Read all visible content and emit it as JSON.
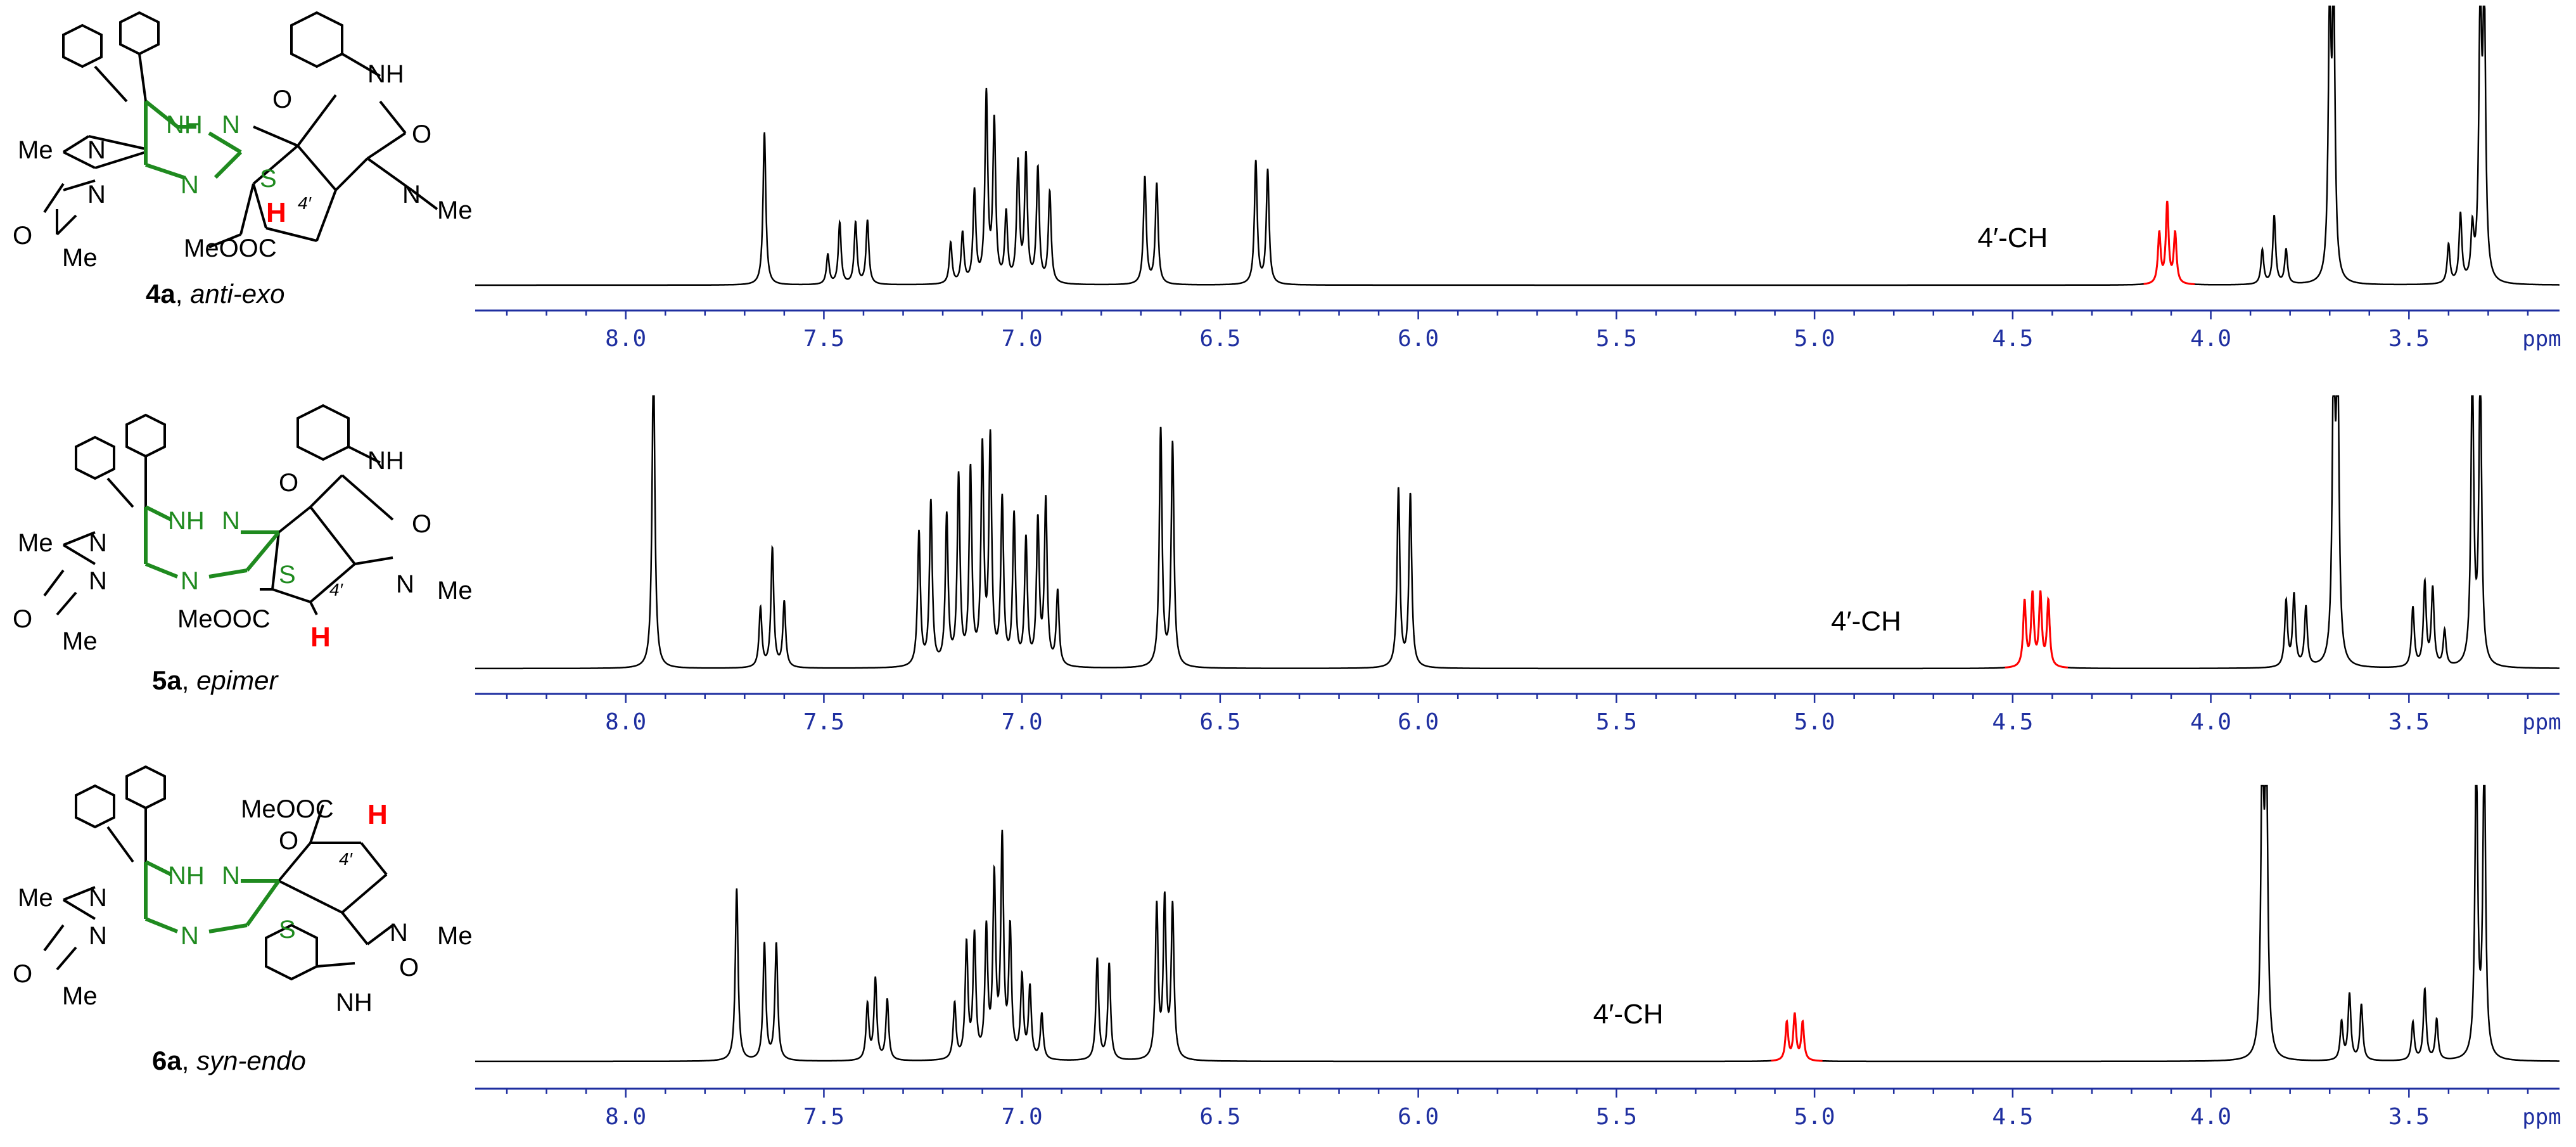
{
  "chart_data": [
    {
      "type": "line",
      "compound": "4a",
      "stereo": "anti-exo",
      "annotation": "4′-CH",
      "annotation_x": 4.5,
      "xunit": "ppm",
      "xlim": [
        8.38,
        3.12
      ],
      "xticks": [
        8.0,
        7.5,
        7.0,
        6.5,
        6.0,
        5.5,
        5.0,
        4.5,
        4.0,
        3.5
      ],
      "tick_labels": [
        "8.0",
        "7.5",
        "7.0",
        "6.5",
        "6.0",
        "5.5",
        "5.0",
        "4.5",
        "4.0",
        "3.5"
      ],
      "highlight_range": [
        4.17,
        4.04
      ],
      "peaks": [
        {
          "x": 7.65,
          "h": 0.67
        },
        {
          "x": 7.49,
          "h": 0.13
        },
        {
          "x": 7.46,
          "h": 0.27
        },
        {
          "x": 7.42,
          "h": 0.27
        },
        {
          "x": 7.39,
          "h": 0.28
        },
        {
          "x": 7.18,
          "h": 0.18
        },
        {
          "x": 7.15,
          "h": 0.22
        },
        {
          "x": 7.12,
          "h": 0.4
        },
        {
          "x": 7.09,
          "h": 0.82
        },
        {
          "x": 7.07,
          "h": 0.7
        },
        {
          "x": 7.04,
          "h": 0.3
        },
        {
          "x": 7.01,
          "h": 0.52
        },
        {
          "x": 6.99,
          "h": 0.55
        },
        {
          "x": 6.96,
          "h": 0.5
        },
        {
          "x": 6.93,
          "h": 0.4
        },
        {
          "x": 6.69,
          "h": 0.47
        },
        {
          "x": 6.66,
          "h": 0.44
        },
        {
          "x": 6.41,
          "h": 0.54
        },
        {
          "x": 6.38,
          "h": 0.5
        },
        {
          "x": 4.13,
          "h": 0.22,
          "hl": true
        },
        {
          "x": 4.11,
          "h": 0.35,
          "hl": true
        },
        {
          "x": 4.09,
          "h": 0.22,
          "hl": true
        },
        {
          "x": 3.87,
          "h": 0.15
        },
        {
          "x": 3.84,
          "h": 0.3
        },
        {
          "x": 3.81,
          "h": 0.15
        },
        {
          "x": 3.7,
          "h": 1.2
        },
        {
          "x": 3.69,
          "h": 1.2
        },
        {
          "x": 3.4,
          "h": 0.17
        },
        {
          "x": 3.37,
          "h": 0.3
        },
        {
          "x": 3.34,
          "h": 0.22
        },
        {
          "x": 3.32,
          "h": 1.2
        },
        {
          "x": 3.31,
          "h": 1.2
        }
      ]
    },
    {
      "type": "line",
      "compound": "5a",
      "stereo": "epimer",
      "annotation": "4′-CH",
      "annotation_x": 4.87,
      "xunit": "ppm",
      "xlim": [
        8.38,
        3.12
      ],
      "xticks": [
        8.0,
        7.5,
        7.0,
        6.5,
        6.0,
        5.5,
        5.0,
        4.5,
        4.0,
        3.5
      ],
      "tick_labels": [
        "8.0",
        "7.5",
        "7.0",
        "6.5",
        "6.0",
        "5.5",
        "5.0",
        "4.5",
        "4.0",
        "3.5"
      ],
      "highlight_range": [
        4.52,
        4.36
      ],
      "peaks": [
        {
          "x": 7.93,
          "h": 1.05
        },
        {
          "x": 7.66,
          "h": 0.2
        },
        {
          "x": 7.63,
          "h": 0.4
        },
        {
          "x": 7.6,
          "h": 0.22
        },
        {
          "x": 7.26,
          "h": 0.45
        },
        {
          "x": 7.23,
          "h": 0.55
        },
        {
          "x": 7.19,
          "h": 0.5
        },
        {
          "x": 7.16,
          "h": 0.63
        },
        {
          "x": 7.13,
          "h": 0.65
        },
        {
          "x": 7.1,
          "h": 0.72
        },
        {
          "x": 7.08,
          "h": 0.75
        },
        {
          "x": 7.05,
          "h": 0.55
        },
        {
          "x": 7.02,
          "h": 0.5
        },
        {
          "x": 6.99,
          "h": 0.42
        },
        {
          "x": 6.96,
          "h": 0.48
        },
        {
          "x": 6.94,
          "h": 0.55
        },
        {
          "x": 6.91,
          "h": 0.25
        },
        {
          "x": 6.65,
          "h": 0.8
        },
        {
          "x": 6.62,
          "h": 0.75
        },
        {
          "x": 6.05,
          "h": 0.6
        },
        {
          "x": 6.02,
          "h": 0.58
        },
        {
          "x": 4.47,
          "h": 0.22,
          "hl": true
        },
        {
          "x": 4.45,
          "h": 0.24,
          "hl": true
        },
        {
          "x": 4.43,
          "h": 0.24,
          "hl": true
        },
        {
          "x": 4.41,
          "h": 0.22,
          "hl": true
        },
        {
          "x": 3.81,
          "h": 0.22
        },
        {
          "x": 3.79,
          "h": 0.24
        },
        {
          "x": 3.76,
          "h": 0.2
        },
        {
          "x": 3.69,
          "h": 1.0
        },
        {
          "x": 3.68,
          "h": 1.0
        },
        {
          "x": 3.49,
          "h": 0.2
        },
        {
          "x": 3.46,
          "h": 0.28
        },
        {
          "x": 3.44,
          "h": 0.26
        },
        {
          "x": 3.41,
          "h": 0.12
        },
        {
          "x": 3.34,
          "h": 1.0
        },
        {
          "x": 3.32,
          "h": 1.0
        }
      ]
    },
    {
      "type": "line",
      "compound": "6a",
      "stereo": "syn-endo",
      "annotation": "4′-CH",
      "annotation_x": 5.47,
      "xunit": "ppm",
      "xlim": [
        8.38,
        3.12
      ],
      "xticks": [
        8.0,
        7.5,
        7.0,
        6.5,
        6.0,
        5.5,
        5.0,
        4.5,
        4.0,
        3.5
      ],
      "tick_labels": [
        "8.0",
        "7.5",
        "7.0",
        "6.5",
        "6.0",
        "5.5",
        "5.0",
        "4.5",
        "4.0",
        "3.5"
      ],
      "highlight_range": [
        5.11,
        4.98
      ],
      "peaks": [
        {
          "x": 7.72,
          "h": 0.68
        },
        {
          "x": 7.65,
          "h": 0.46
        },
        {
          "x": 7.62,
          "h": 0.46
        },
        {
          "x": 7.39,
          "h": 0.22
        },
        {
          "x": 7.37,
          "h": 0.32
        },
        {
          "x": 7.34,
          "h": 0.24
        },
        {
          "x": 7.17,
          "h": 0.22
        },
        {
          "x": 7.14,
          "h": 0.45
        },
        {
          "x": 7.12,
          "h": 0.48
        },
        {
          "x": 7.09,
          "h": 0.5
        },
        {
          "x": 7.07,
          "h": 0.7
        },
        {
          "x": 7.05,
          "h": 0.85
        },
        {
          "x": 7.03,
          "h": 0.5
        },
        {
          "x": 7.0,
          "h": 0.32
        },
        {
          "x": 6.98,
          "h": 0.28
        },
        {
          "x": 6.95,
          "h": 0.18
        },
        {
          "x": 6.81,
          "h": 0.4
        },
        {
          "x": 6.78,
          "h": 0.38
        },
        {
          "x": 6.66,
          "h": 0.6
        },
        {
          "x": 6.64,
          "h": 0.62
        },
        {
          "x": 6.62,
          "h": 0.6
        },
        {
          "x": 5.07,
          "h": 0.15,
          "hl": true
        },
        {
          "x": 5.05,
          "h": 0.18,
          "hl": true
        },
        {
          "x": 5.03,
          "h": 0.15,
          "hl": true
        },
        {
          "x": 3.87,
          "h": 1.2
        },
        {
          "x": 3.86,
          "h": 1.2
        },
        {
          "x": 3.67,
          "h": 0.15
        },
        {
          "x": 3.65,
          "h": 0.26
        },
        {
          "x": 3.62,
          "h": 0.22
        },
        {
          "x": 3.49,
          "h": 0.15
        },
        {
          "x": 3.46,
          "h": 0.28
        },
        {
          "x": 3.43,
          "h": 0.16
        },
        {
          "x": 3.33,
          "h": 1.2
        },
        {
          "x": 3.31,
          "h": 1.2
        }
      ]
    }
  ],
  "structures": [
    {
      "label_bold": "4a",
      "label_italic": "anti-exo",
      "atoms": {
        "nh_top": "NH",
        "me_left": "Me",
        "n1": "N",
        "n2": "N",
        "me_bottom": "Me",
        "o_left": "O",
        "nh_mid": "NH",
        "n_chain": "N",
        "o_carbonyl": "O",
        "n_ring": "N",
        "s": "S",
        "h": "H",
        "ester": "MeOOC",
        "n_pyrr": "N",
        "me_pyrr": "Me",
        "o_ox": "O",
        "loc": "4′"
      }
    },
    {
      "label_bold": "5a",
      "label_italic": "epimer",
      "atoms": {
        "nh_top": "NH",
        "me_left": "Me",
        "n1": "N",
        "n2": "N",
        "me_bottom": "Me",
        "o_left": "O",
        "nh_mid": "NH",
        "n_chain": "N",
        "o_carbonyl": "O",
        "n_ring": "N",
        "s": "S",
        "h": "H",
        "ester": "MeOOC",
        "n_pyrr": "N",
        "me_pyrr": "Me",
        "o_ox": "O",
        "loc": "4′"
      }
    },
    {
      "label_bold": "6a",
      "label_italic": "syn-endo",
      "atoms": {
        "nh_top": "NH",
        "me_left": "Me",
        "n1": "N",
        "n2": "N",
        "me_bottom": "Me",
        "o_left": "O",
        "nh_mid": "NH",
        "n_chain": "N",
        "o_carbonyl": "O",
        "n_ring": "N",
        "s": "S",
        "h": "H",
        "ester": "MeOOC",
        "n_pyrr": "N",
        "me_pyrr": "Me",
        "o_ox": "O",
        "loc": "4′"
      }
    }
  ],
  "colors": {
    "axis": "#1f2fa0",
    "trace": "#000000",
    "highlight": "#ff0000",
    "ring": "#1f8a1f"
  }
}
